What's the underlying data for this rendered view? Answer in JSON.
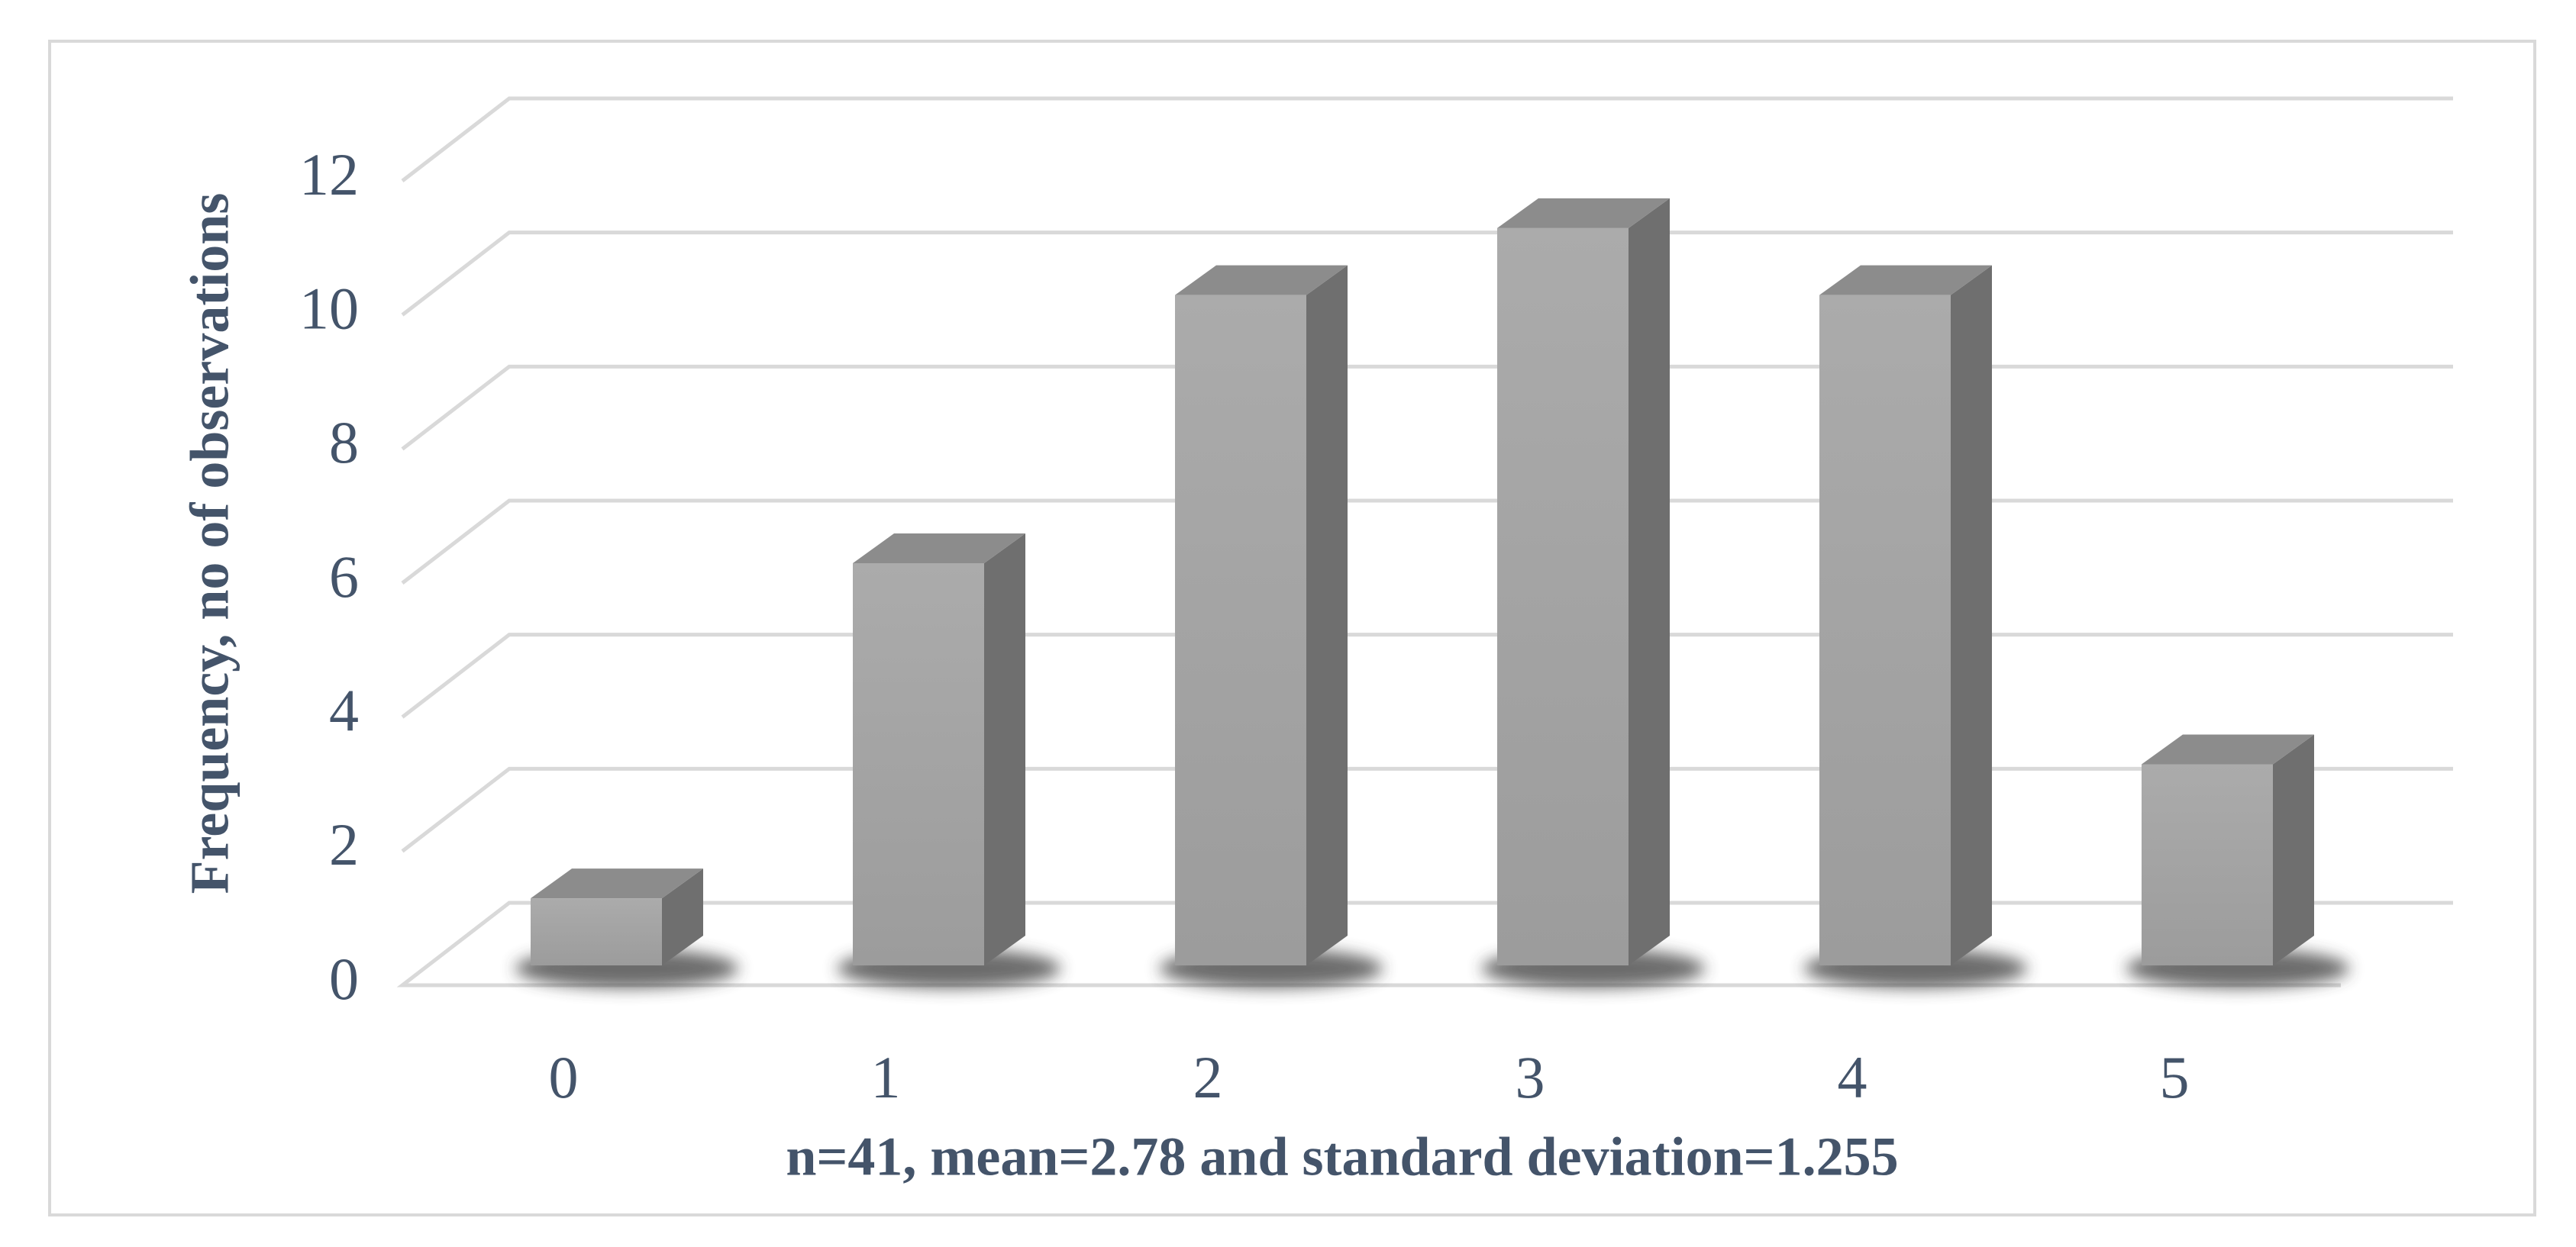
{
  "chart_data": {
    "type": "bar3d",
    "x_label": "n=41, mean=2.78 and standard deviation=1.255",
    "y_label": "Frequency, no of observations",
    "categories": [
      "0",
      "1",
      "2",
      "3",
      "4",
      "5"
    ],
    "values": [
      1,
      6,
      10,
      11,
      10,
      3
    ],
    "color": "#a8a8a8",
    "ylim": [
      0,
      12
    ],
    "yticks": [
      0,
      2,
      4,
      6,
      8,
      10,
      12
    ],
    "grid": true
  }
}
